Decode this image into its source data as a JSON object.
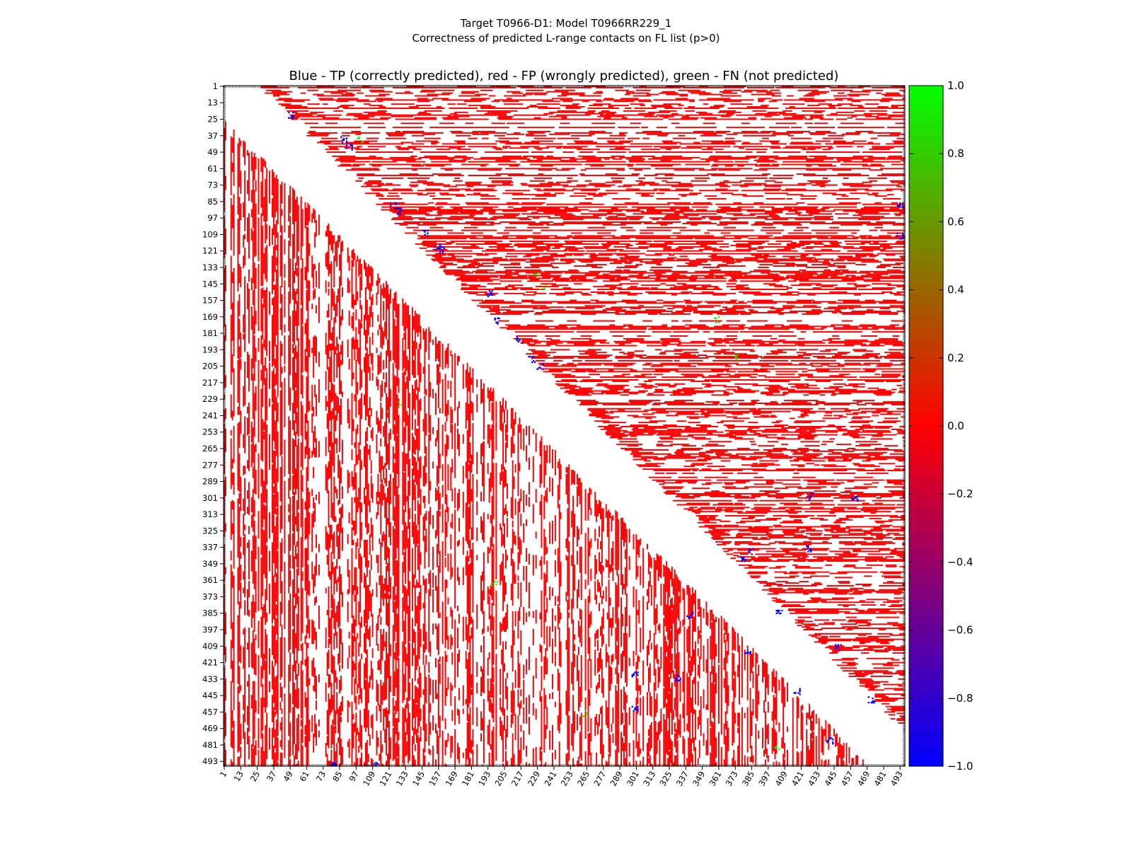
{
  "chart_data": {
    "type": "heatmap",
    "suptitle": [
      "Target T0966-D1: Model T0966RR229_1",
      "Correctness of predicted L-range contacts on FL list (p>0)"
    ],
    "title": "Blue - TP (correctly predicted), red - FP (wrongly predicted), green - FN (not predicted)",
    "x_ticks": [
      "1",
      "13",
      "25",
      "37",
      "49",
      "61",
      "73",
      "85",
      "97",
      "109",
      "121",
      "133",
      "145",
      "157",
      "169",
      "181",
      "193",
      "205",
      "217",
      "229",
      "241",
      "253",
      "265",
      "277",
      "289",
      "301",
      "313",
      "325",
      "337",
      "349",
      "361",
      "373",
      "385",
      "397",
      "409",
      "421",
      "433",
      "445",
      "457",
      "469",
      "481",
      "493"
    ],
    "y_ticks": [
      "1",
      "13",
      "25",
      "37",
      "49",
      "61",
      "73",
      "85",
      "97",
      "109",
      "121",
      "133",
      "145",
      "157",
      "169",
      "181",
      "193",
      "205",
      "217",
      "229",
      "241",
      "253",
      "265",
      "277",
      "289",
      "301",
      "313",
      "325",
      "337",
      "349",
      "361",
      "373",
      "385",
      "397",
      "409",
      "421",
      "433",
      "445",
      "457",
      "469",
      "481",
      "493"
    ],
    "range": [
      1,
      496
    ],
    "diagonal_excluded_width": 24,
    "colorbar": {
      "min": -1.0,
      "max": 1.0,
      "ticks": [
        "1.0",
        "0.8",
        "0.6",
        "0.4",
        "0.2",
        "0.0",
        "−0.2",
        "−0.4",
        "−0.6",
        "−0.8",
        "−1.0"
      ],
      "stops": [
        "#0000ff",
        "#ff0000",
        "#00ff00"
      ]
    },
    "legend_colors": {
      "TP": "#0000ff",
      "FP": "#ff0000",
      "FN": "#00ff00"
    },
    "clusters": [
      {
        "class": "TP",
        "i": 22,
        "j": 49
      },
      {
        "class": "TP",
        "i": 40,
        "j": 88
      },
      {
        "class": "TP",
        "i": 45,
        "j": 92
      },
      {
        "class": "TP",
        "i": 88,
        "j": 124
      },
      {
        "class": "TP",
        "i": 92,
        "j": 128
      },
      {
        "class": "TP",
        "i": 108,
        "j": 147
      },
      {
        "class": "TP",
        "i": 118,
        "j": 156
      },
      {
        "class": "TP",
        "i": 120,
        "j": 160
      },
      {
        "class": "TP",
        "i": 152,
        "j": 194
      },
      {
        "class": "TP",
        "i": 172,
        "j": 200
      },
      {
        "class": "TP",
        "i": 186,
        "j": 216
      },
      {
        "class": "TP",
        "i": 200,
        "j": 225
      },
      {
        "class": "TP",
        "i": 205,
        "j": 231
      },
      {
        "class": "TP",
        "i": 300,
        "j": 428
      },
      {
        "class": "TP",
        "i": 302,
        "j": 460
      },
      {
        "class": "TP",
        "i": 338,
        "j": 426
      },
      {
        "class": "TP",
        "i": 340,
        "j": 385
      },
      {
        "class": "TP",
        "i": 345,
        "j": 378
      },
      {
        "class": "TP",
        "i": 385,
        "j": 405
      },
      {
        "class": "TP",
        "i": 386,
        "j": 340
      },
      {
        "class": "TP",
        "i": 410,
        "j": 448
      },
      {
        "class": "TP",
        "i": 415,
        "j": 382
      },
      {
        "class": "TP",
        "i": 430,
        "j": 300
      },
      {
        "class": "TP",
        "i": 432,
        "j": 332
      },
      {
        "class": "TP",
        "i": 442,
        "j": 418
      },
      {
        "class": "TP",
        "i": 448,
        "j": 472
      },
      {
        "class": "TP",
        "i": 455,
        "j": 300
      },
      {
        "class": "TP",
        "i": 478,
        "j": 442
      },
      {
        "class": "TP",
        "i": 495,
        "j": 80
      },
      {
        "class": "TP",
        "i": 495,
        "j": 112
      },
      {
        "class": "TP",
        "i": 88,
        "j": 493
      },
      {
        "class": "TP",
        "i": 110,
        "j": 493
      },
      {
        "class": "FN",
        "i": 40,
        "j": 100
      },
      {
        "class": "FN",
        "i": 138,
        "j": 228
      },
      {
        "class": "FN",
        "i": 148,
        "j": 233
      },
      {
        "class": "FN",
        "i": 171,
        "j": 360
      },
      {
        "class": "FN",
        "i": 198,
        "j": 374
      },
      {
        "class": "FN",
        "i": 233,
        "j": 129
      },
      {
        "class": "FN",
        "i": 364,
        "j": 198
      },
      {
        "class": "FN",
        "i": 458,
        "j": 264
      },
      {
        "class": "FN",
        "i": 483,
        "j": 403
      }
    ]
  }
}
